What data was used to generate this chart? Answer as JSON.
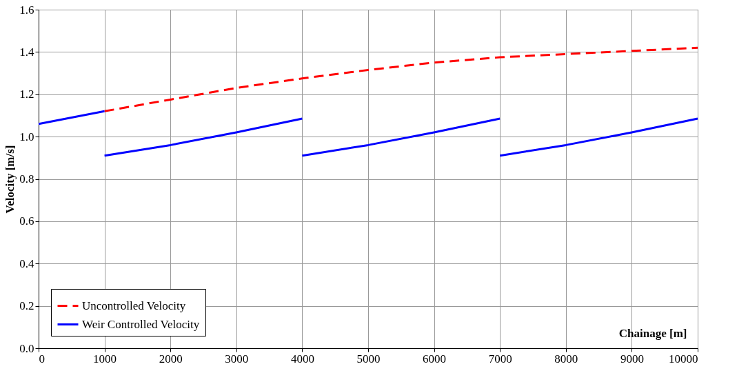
{
  "chart_data": {
    "type": "line",
    "xlabel": "Chainage [m]",
    "ylabel": "Velocity [m/s]",
    "xlim": [
      0,
      10000
    ],
    "xticks": [
      0,
      1000,
      2000,
      3000,
      4000,
      5000,
      6000,
      7000,
      8000,
      9000,
      10000
    ],
    "ylim": [
      0,
      1.6
    ],
    "yticks": [
      {
        "value": 0,
        "label": "0.0"
      },
      0.2,
      0.4,
      0.6,
      0.8,
      {
        "value": 1,
        "label": "1.0"
      },
      1.2,
      1.4,
      1.6
    ],
    "grid": true,
    "legend": "bottom left",
    "series": [
      {
        "name": "Uncontrolled Velocity",
        "color": "#ff0000",
        "line_style": "dashed",
        "x": [
          1000,
          2000,
          3000,
          4000,
          5000,
          6000,
          7000,
          8000,
          9000,
          10000
        ],
        "values": [
          1.12,
          1.175,
          1.23,
          1.275,
          1.315,
          1.35,
          1.375,
          1.39,
          1.405,
          1.42
        ]
      },
      {
        "name": "Weir Controlled Velocity",
        "color": "#0000ff",
        "line_style": "solid",
        "x": [
          0,
          500,
          1000,
          1000,
          2000,
          3000,
          4000,
          4000,
          5000,
          6000,
          7000,
          7000,
          8000,
          9000,
          10000
        ],
        "values": [
          1.06,
          1.09,
          1.12,
          0.91,
          0.96,
          1.02,
          1.085,
          0.91,
          0.96,
          1.02,
          1.085,
          0.91,
          0.96,
          1.02,
          1.085
        ]
      }
    ]
  }
}
